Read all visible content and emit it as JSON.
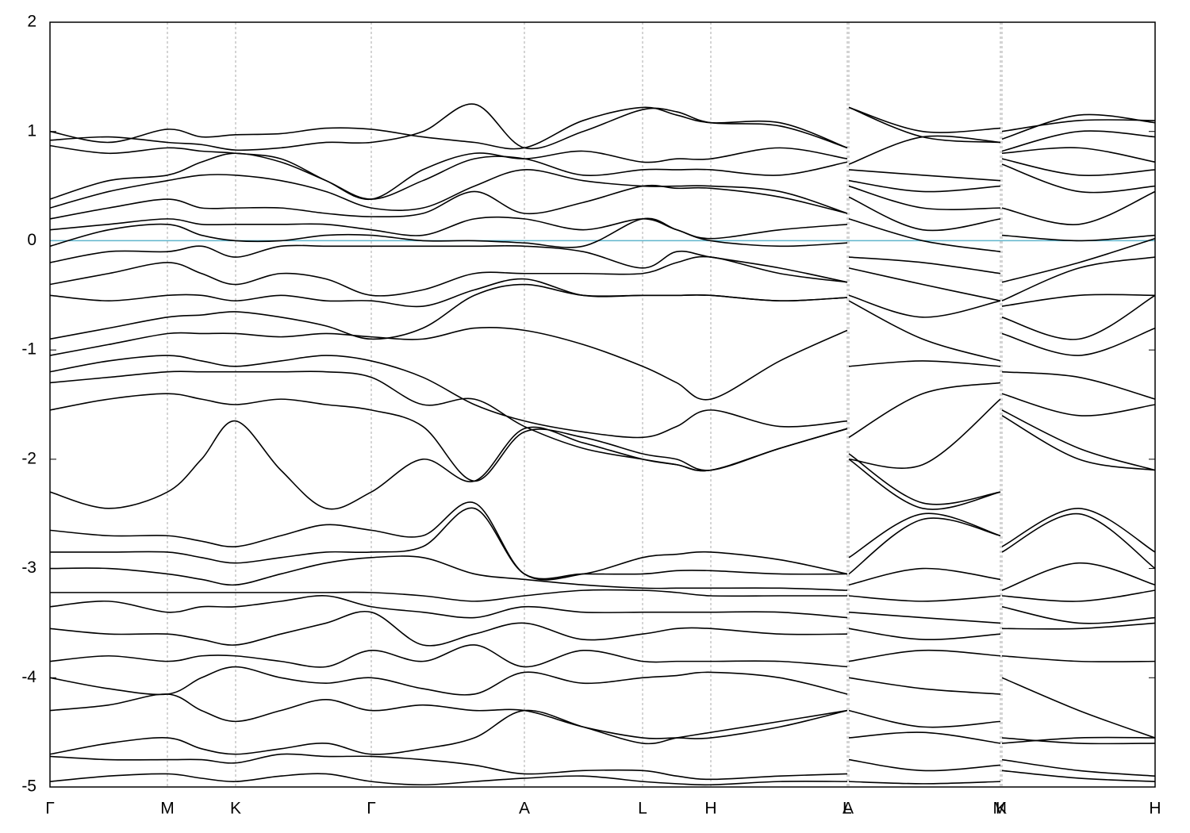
{
  "chart_data": {
    "type": "line",
    "color": "#000000",
    "fermi_level": 0,
    "fermi_color": "#5fb4cc",
    "grid": true,
    "xlim": [
      0,
      13.93
    ],
    "ylim": [
      -5,
      2
    ],
    "yticks": [
      -5,
      -4,
      -3,
      -2,
      -1,
      0,
      1,
      2
    ],
    "xticks": [
      {
        "value": 0,
        "label": "Γ"
      },
      {
        "value": 1.48,
        "label": "M"
      },
      {
        "value": 2.34,
        "label": "K"
      },
      {
        "value": 4.05,
        "label": "Γ"
      },
      {
        "value": 5.98,
        "label": "A"
      },
      {
        "value": 7.47,
        "label": "L"
      },
      {
        "value": 8.33,
        "label": "H"
      },
      {
        "value": 10.05,
        "label": "A"
      },
      {
        "value": 10.07,
        "label": "L"
      },
      {
        "value": 11.98,
        "label": "M"
      },
      {
        "value": 12.0,
        "label": "K"
      },
      {
        "value": 13.93,
        "label": "H"
      }
    ],
    "x": [
      0,
      0.74,
      1.48,
      1.91,
      2.34,
      2.91,
      3.48,
      4.05,
      4.7,
      5.35,
      5.98,
      6.72,
      7.47,
      7.9,
      8.33,
      9.2,
      10.05,
      10.06,
      10.07,
      11.0,
      11.98,
      11.99,
      12.0,
      12.97,
      13.93
    ],
    "series": [
      {
        "values": [
          1.0,
          0.9,
          1.02,
          0.95,
          0.97,
          0.98,
          1.03,
          1.02,
          0.95,
          0.9,
          0.85,
          1.1,
          1.22,
          1.15,
          1.08,
          1.08,
          0.85,
          null,
          1.22,
          1.0,
          1.03,
          null,
          1.0,
          1.1,
          1.1
        ]
      },
      {
        "values": [
          0.92,
          0.95,
          0.9,
          0.88,
          0.83,
          0.85,
          0.9,
          0.9,
          1.0,
          1.25,
          0.85,
          1.0,
          1.2,
          1.18,
          1.08,
          1.05,
          0.85,
          null,
          1.22,
          0.95,
          0.9,
          null,
          0.93,
          1.15,
          1.08
        ]
      },
      {
        "values": [
          0.87,
          0.8,
          0.85,
          0.82,
          0.8,
          0.75,
          0.55,
          0.38,
          0.65,
          0.8,
          0.75,
          0.82,
          0.72,
          0.75,
          0.75,
          0.85,
          0.75,
          null,
          0.7,
          0.95,
          0.9,
          null,
          0.82,
          1.0,
          0.95
        ]
      },
      {
        "values": [
          0.38,
          0.55,
          0.6,
          0.72,
          0.8,
          0.72,
          0.55,
          0.38,
          0.55,
          0.75,
          0.75,
          0.6,
          0.65,
          0.65,
          0.65,
          0.6,
          0.72,
          null,
          0.65,
          0.6,
          0.55,
          null,
          0.8,
          0.85,
          0.72
        ]
      },
      {
        "values": [
          0.3,
          0.45,
          0.55,
          0.6,
          0.6,
          0.55,
          0.45,
          0.3,
          0.3,
          0.5,
          0.65,
          0.55,
          0.5,
          0.5,
          0.5,
          0.45,
          0.25,
          null,
          0.55,
          0.45,
          0.5,
          null,
          0.75,
          0.6,
          0.65
        ]
      },
      {
        "values": [
          0.2,
          0.3,
          0.38,
          0.3,
          0.3,
          0.3,
          0.25,
          0.22,
          0.25,
          0.45,
          0.25,
          0.35,
          0.5,
          0.48,
          0.48,
          0.4,
          0.25,
          null,
          0.5,
          0.3,
          0.3,
          null,
          0.7,
          0.45,
          0.5
        ]
      },
      {
        "values": [
          0.1,
          0.15,
          0.2,
          0.15,
          0.15,
          0.15,
          0.15,
          0.1,
          0.05,
          0.2,
          0.2,
          0.1,
          0.2,
          0.1,
          0.02,
          0.1,
          0.15,
          null,
          0.4,
          0.1,
          0.2,
          null,
          0.3,
          0.15,
          0.45
        ]
      },
      {
        "values": [
          -0.05,
          0.1,
          0.15,
          0.05,
          0.0,
          0.0,
          0.05,
          0.05,
          0.0,
          0.0,
          -0.02,
          -0.05,
          0.2,
          0.1,
          0.0,
          -0.05,
          -0.02,
          null,
          0.2,
          0.0,
          -0.1,
          null,
          0.05,
          0.0,
          0.05
        ]
      },
      {
        "values": [
          -0.2,
          -0.1,
          -0.1,
          -0.05,
          -0.15,
          -0.05,
          -0.05,
          -0.05,
          -0.05,
          -0.05,
          -0.05,
          -0.1,
          -0.25,
          -0.1,
          -0.15,
          -0.25,
          -0.38,
          null,
          -0.15,
          -0.2,
          -0.3,
          null,
          -0.38,
          -0.2,
          0.02
        ]
      },
      {
        "values": [
          -0.4,
          -0.3,
          -0.2,
          -0.3,
          -0.4,
          -0.3,
          -0.35,
          -0.5,
          -0.45,
          -0.3,
          -0.3,
          -0.3,
          -0.3,
          -0.2,
          -0.15,
          -0.3,
          -0.38,
          null,
          -0.25,
          -0.4,
          -0.55,
          null,
          -0.55,
          -0.25,
          -0.15
        ]
      },
      {
        "values": [
          -0.5,
          -0.55,
          -0.5,
          -0.5,
          -0.55,
          -0.5,
          -0.55,
          -0.55,
          -0.6,
          -0.45,
          -0.35,
          -0.5,
          -0.5,
          -0.5,
          -0.5,
          -0.55,
          -0.52,
          null,
          -0.5,
          -0.7,
          -0.55,
          null,
          -0.6,
          -0.5,
          -0.5
        ]
      },
      {
        "values": [
          -0.9,
          -0.8,
          -0.7,
          -0.68,
          -0.65,
          -0.7,
          -0.78,
          -0.9,
          -0.8,
          -0.5,
          -0.4,
          -0.5,
          -0.5,
          -0.5,
          -0.5,
          -0.55,
          -0.52,
          null,
          -0.55,
          -0.9,
          -1.1,
          null,
          -0.7,
          -0.9,
          -0.5
        ]
      },
      {
        "values": [
          -1.05,
          -0.95,
          -0.85,
          -0.85,
          -0.85,
          -0.88,
          -0.85,
          -0.88,
          -0.9,
          -0.8,
          -0.82,
          -0.95,
          -1.15,
          -1.3,
          -1.45,
          -1.1,
          -0.82,
          null,
          -1.15,
          -1.1,
          -1.15,
          null,
          -0.85,
          -1.05,
          -0.8
        ]
      },
      {
        "values": [
          -1.2,
          -1.1,
          -1.05,
          -1.1,
          -1.15,
          -1.1,
          -1.05,
          -1.1,
          -1.25,
          -1.5,
          -1.65,
          -1.75,
          -1.8,
          -1.7,
          -1.55,
          -1.7,
          -1.65,
          null,
          -1.8,
          -1.4,
          -1.3,
          null,
          -1.2,
          -1.25,
          -1.45
        ]
      },
      {
        "values": [
          -1.3,
          -1.25,
          -1.2,
          -1.2,
          -1.2,
          -1.2,
          -1.2,
          -1.25,
          -1.5,
          -1.45,
          -1.7,
          -1.9,
          -2.0,
          -2.05,
          -2.1,
          -1.9,
          -1.72,
          null,
          -2.0,
          -2.05,
          -1.45,
          null,
          -1.4,
          -1.6,
          -1.5
        ]
      },
      {
        "values": [
          -1.55,
          -1.45,
          -1.4,
          -1.45,
          -1.5,
          -1.45,
          -1.5,
          -1.55,
          -1.7,
          -2.2,
          -1.75,
          -1.8,
          -1.95,
          -2.0,
          -2.1,
          -1.9,
          -1.72,
          null,
          -1.95,
          -2.4,
          -2.3,
          null,
          -1.55,
          -1.9,
          -2.1
        ]
      },
      {
        "values": [
          -2.3,
          -2.45,
          -2.3,
          -2.0,
          -1.65,
          -2.1,
          -2.45,
          -2.3,
          -2.0,
          -2.2,
          -1.72,
          -1.85,
          -2.0,
          -2.05,
          -2.1,
          -1.9,
          -1.72,
          null,
          -2.0,
          -2.45,
          -2.3,
          null,
          -1.6,
          -2.0,
          -2.1
        ]
      },
      {
        "values": [
          -2.65,
          -2.7,
          -2.7,
          -2.75,
          -2.8,
          -2.7,
          -2.6,
          -2.65,
          -2.7,
          -2.4,
          -3.05,
          -3.05,
          -2.9,
          -2.87,
          -2.85,
          -2.92,
          -3.05,
          null,
          -2.9,
          -2.5,
          -2.7,
          null,
          -2.8,
          -2.45,
          -2.85
        ]
      },
      {
        "values": [
          -2.85,
          -2.85,
          -2.85,
          -2.9,
          -2.95,
          -2.9,
          -2.85,
          -2.85,
          -2.8,
          -2.45,
          -3.05,
          -3.05,
          -3.05,
          -3.02,
          -3.02,
          -3.05,
          -3.05,
          null,
          -3.05,
          -2.55,
          -2.7,
          null,
          -2.85,
          -2.5,
          -3.0
        ]
      },
      {
        "values": [
          -3.0,
          -3.0,
          -3.05,
          -3.1,
          -3.15,
          -3.05,
          -2.95,
          -2.9,
          -2.9,
          -3.05,
          -3.1,
          -3.15,
          -3.18,
          -3.18,
          -3.18,
          -3.18,
          -3.2,
          null,
          -3.15,
          -3.0,
          -3.1,
          null,
          -3.2,
          -2.95,
          -3.15
        ]
      },
      {
        "values": [
          -3.22,
          -3.22,
          -3.22,
          -3.22,
          -3.22,
          -3.22,
          -3.22,
          -3.22,
          -3.25,
          -3.3,
          -3.25,
          -3.2,
          -3.2,
          -3.22,
          -3.25,
          -3.25,
          -3.25,
          null,
          -3.25,
          -3.3,
          -3.25,
          null,
          -3.25,
          -3.3,
          -3.2
        ]
      },
      {
        "values": [
          -3.35,
          -3.3,
          -3.4,
          -3.35,
          -3.35,
          -3.3,
          -3.25,
          -3.35,
          -3.4,
          -3.45,
          -3.35,
          -3.4,
          -3.4,
          -3.4,
          -3.4,
          -3.4,
          -3.45,
          null,
          -3.4,
          -3.45,
          -3.5,
          null,
          -3.35,
          -3.5,
          -3.45
        ]
      },
      {
        "values": [
          -3.55,
          -3.6,
          -3.6,
          -3.65,
          -3.7,
          -3.6,
          -3.5,
          -3.4,
          -3.7,
          -3.6,
          -3.5,
          -3.65,
          -3.6,
          -3.55,
          -3.55,
          -3.6,
          -3.6,
          null,
          -3.55,
          -3.65,
          -3.6,
          null,
          -3.55,
          -3.55,
          -3.5
        ]
      },
      {
        "values": [
          -3.85,
          -3.8,
          -3.85,
          -3.8,
          -3.8,
          -3.85,
          -3.9,
          -3.75,
          -3.85,
          -3.7,
          -3.9,
          -3.75,
          -3.85,
          -3.85,
          -3.85,
          -3.85,
          -3.9,
          null,
          -3.85,
          -3.75,
          -3.8,
          null,
          -3.8,
          -3.85,
          -3.85
        ]
      },
      {
        "values": [
          -4.0,
          -4.1,
          -4.15,
          -4.0,
          -3.9,
          -4.0,
          -4.05,
          -4.0,
          -4.1,
          -4.15,
          -3.95,
          -4.05,
          -4.0,
          -3.98,
          -3.95,
          -4.0,
          -4.15,
          null,
          -4.0,
          -4.1,
          -4.15,
          null,
          -4.0,
          -4.3,
          -4.55
        ]
      },
      {
        "values": [
          -4.3,
          -4.25,
          -4.15,
          -4.3,
          -4.4,
          -4.3,
          -4.2,
          -4.3,
          -4.25,
          -4.3,
          -4.3,
          -4.45,
          -4.55,
          -4.55,
          -4.55,
          -4.45,
          -4.3,
          null,
          -4.3,
          -4.45,
          -4.4,
          null,
          -4.55,
          -4.6,
          -4.6
        ]
      },
      {
        "values": [
          -4.7,
          -4.6,
          -4.55,
          -4.65,
          -4.7,
          -4.65,
          -4.6,
          -4.7,
          -4.65,
          -4.55,
          -4.3,
          -4.45,
          -4.6,
          -4.55,
          -4.5,
          -4.4,
          -4.3,
          null,
          -4.55,
          -4.5,
          -4.6,
          null,
          -4.6,
          -4.55,
          -4.55
        ]
      },
      {
        "values": [
          -4.72,
          -4.75,
          -4.75,
          -4.75,
          -4.78,
          -4.7,
          -4.72,
          -4.72,
          -4.75,
          -4.8,
          -4.88,
          -4.85,
          -4.85,
          -4.9,
          -4.93,
          -4.9,
          -4.88,
          null,
          -4.75,
          -4.85,
          -4.8,
          null,
          -4.75,
          -4.85,
          -4.9
        ]
      },
      {
        "values": [
          -4.95,
          -4.9,
          -4.88,
          -4.92,
          -4.95,
          -4.9,
          -4.88,
          -4.95,
          -4.98,
          -4.95,
          -4.92,
          -4.9,
          -4.95,
          -4.97,
          -4.98,
          -4.95,
          -4.95,
          null,
          -4.95,
          -4.97,
          -4.95,
          null,
          -4.85,
          -4.92,
          -4.95
        ]
      }
    ]
  }
}
